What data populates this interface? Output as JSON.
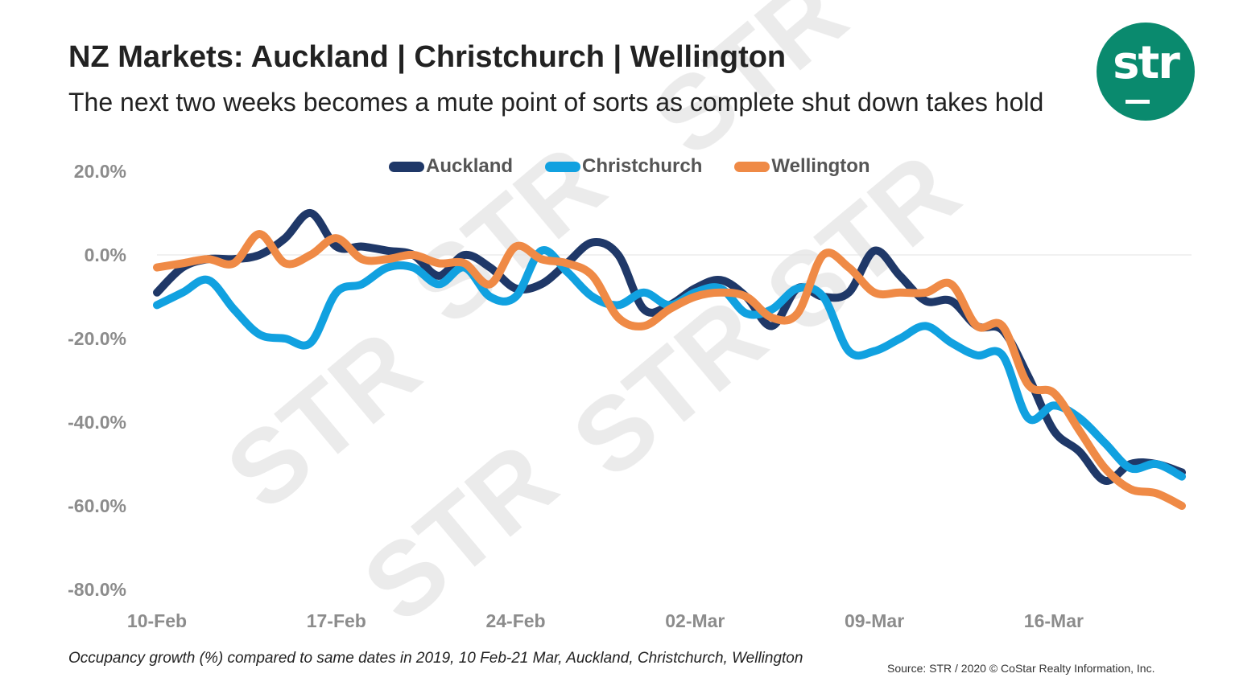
{
  "header": {
    "title": "NZ Markets: Auckland | Christchurch | Wellington",
    "subtitle": "The next two weeks becomes a mute point of sorts as complete shut down takes hold"
  },
  "logo": {
    "text": "str",
    "color": "#0a8a6e",
    "watermark_text": "STR"
  },
  "footer": {
    "caption": "Occupancy growth (%) compared to same dates in 2019, 10 Feb-21 Mar, Auckland, Christchurch, Wellington",
    "source": "Source: STR / 2020 © CoStar Realty Information, Inc."
  },
  "chart_data": {
    "type": "line",
    "title": "NZ Markets: Auckland | Christchurch | Wellington",
    "subtitle": "The next two weeks becomes a mute point of sorts as complete shut down takes hold",
    "xlabel": "",
    "ylabel": "",
    "x_start": "10-Feb",
    "x_end": "21-Mar",
    "x_ticks": [
      "10-Feb",
      "17-Feb",
      "24-Feb",
      "02-Mar",
      "09-Mar",
      "16-Mar"
    ],
    "y_ticks": [
      "20.0%",
      "0.0%",
      "-20.0%",
      "-40.0%",
      "-60.0%",
      "-80.0%"
    ],
    "ylim": [
      -80,
      20
    ],
    "grid": "zero line only",
    "legend": "top",
    "x": [
      "10-Feb",
      "11-Feb",
      "12-Feb",
      "13-Feb",
      "14-Feb",
      "15-Feb",
      "16-Feb",
      "17-Feb",
      "18-Feb",
      "19-Feb",
      "20-Feb",
      "21-Feb",
      "22-Feb",
      "23-Feb",
      "24-Feb",
      "25-Feb",
      "26-Feb",
      "27-Feb",
      "28-Feb",
      "29-Feb",
      "01-Mar",
      "02-Mar",
      "03-Mar",
      "04-Mar",
      "05-Mar",
      "06-Mar",
      "07-Mar",
      "08-Mar",
      "09-Mar",
      "10-Mar",
      "11-Mar",
      "12-Mar",
      "13-Mar",
      "14-Mar",
      "15-Mar",
      "16-Mar",
      "17-Mar",
      "18-Mar",
      "19-Mar",
      "20-Mar",
      "21-Mar"
    ],
    "series": [
      {
        "name": "Auckland",
        "color": "#1f3868",
        "values": [
          -9,
          -3,
          -1,
          -1,
          0,
          4,
          10,
          2,
          2,
          1,
          0,
          -5,
          0,
          -3,
          -8,
          -7,
          -2,
          3,
          0,
          -13,
          -12,
          -8,
          -6,
          -10,
          -17,
          -8,
          -10,
          -9,
          1,
          -5,
          -11,
          -11,
          -17,
          -18,
          -29,
          -42,
          -47,
          -54,
          -50,
          -50,
          -52
        ]
      },
      {
        "name": "Christchurch",
        "color": "#11a1e0",
        "values": [
          -12,
          -9,
          -6,
          -13,
          -19,
          -20,
          -21,
          -9,
          -7,
          -3,
          -3,
          -7,
          -3,
          -10,
          -10,
          1,
          -4,
          -10,
          -12,
          -9,
          -12,
          -9,
          -8,
          -14,
          -13,
          -8,
          -10,
          -23,
          -23,
          -20,
          -17,
          -21,
          -24,
          -24,
          -39,
          -36,
          -39,
          -45,
          -51,
          -50,
          -53
        ]
      },
      {
        "name": "Wellington",
        "color": "#ef8a46",
        "values": [
          -3,
          -2,
          -1,
          -2,
          5,
          -2,
          0,
          4,
          -1,
          -1,
          0,
          -2,
          -2,
          -7,
          2,
          -1,
          -2,
          -5,
          -15,
          -17,
          -13,
          -10,
          -9,
          -10,
          -15,
          -14,
          0,
          -3,
          -9,
          -9,
          -9,
          -7,
          -17,
          -17,
          -31,
          -33,
          -42,
          -51,
          -56,
          -57,
          -60
        ]
      }
    ]
  }
}
